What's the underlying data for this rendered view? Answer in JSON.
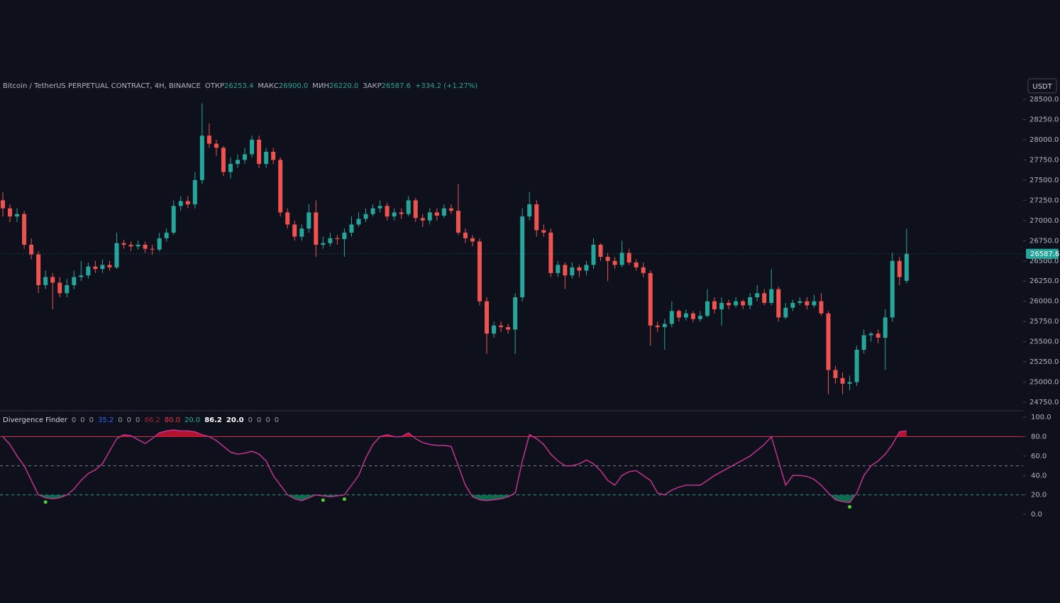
{
  "chart_data": {
    "type": "candlestick",
    "header": {
      "symbol": "Bitcoin / TetherUS PERPETUAL CONTRACT, 4H, BINANCE",
      "fields": [
        {
          "label": "ОТКР",
          "value": "26253.4"
        },
        {
          "label": "МАКС",
          "value": "26900.0"
        },
        {
          "label": "МИН",
          "value": "26220.0"
        },
        {
          "label": "ЗАКР",
          "value": "26587.6"
        }
      ],
      "change": "+334.2 (+1.27%)"
    },
    "currency": "USDT",
    "up_color": "#26a69a",
    "down_color": "#ef5350",
    "ylim": [
      24654,
      28807
    ],
    "yticks": [
      {
        "value": 24750,
        "label": "24750.0"
      },
      {
        "value": 25000,
        "label": "25000.0"
      },
      {
        "value": 25250,
        "label": "25250.0"
      },
      {
        "value": 25500,
        "label": "25500.0"
      },
      {
        "value": 25750,
        "label": "25750.0"
      },
      {
        "value": 26000,
        "label": "26000.0"
      },
      {
        "value": 26250,
        "label": "26250.0"
      },
      {
        "value": 26500,
        "label": "26500.0"
      },
      {
        "value": 26750,
        "label": "26750.0"
      },
      {
        "value": 27000,
        "label": "27000.0"
      },
      {
        "value": 27250,
        "label": "27250.0"
      },
      {
        "value": 27500,
        "label": "27500.0"
      },
      {
        "value": 27750,
        "label": "27750.0"
      },
      {
        "value": 28000,
        "label": "28000.0"
      },
      {
        "value": 28250,
        "label": "28250.0"
      },
      {
        "value": 28500,
        "label": "28500.0"
      }
    ],
    "ohlc": [
      [
        27250,
        27350,
        27050,
        27150
      ],
      [
        27150,
        27200,
        26980,
        27050
      ],
      [
        27050,
        27150,
        26980,
        27080
      ],
      [
        27080,
        27120,
        26650,
        26700
      ],
      [
        26700,
        26780,
        26520,
        26580
      ],
      [
        26580,
        26620,
        26100,
        26200
      ],
      [
        26200,
        26380,
        26150,
        26300
      ],
      [
        26300,
        26350,
        25900,
        26230
      ],
      [
        26230,
        26300,
        26050,
        26100
      ],
      [
        26100,
        26280,
        26050,
        26200
      ],
      [
        26200,
        26380,
        26150,
        26300
      ],
      [
        26300,
        26500,
        26250,
        26320
      ],
      [
        26320,
        26480,
        26280,
        26430
      ],
      [
        26430,
        26500,
        26350,
        26400
      ],
      [
        26400,
        26520,
        26350,
        26450
      ],
      [
        26450,
        26500,
        26380,
        26420
      ],
      [
        26420,
        26850,
        26400,
        26720
      ],
      [
        26720,
        26760,
        26650,
        26700
      ],
      [
        26700,
        26740,
        26620,
        26680
      ],
      [
        26680,
        26750,
        26640,
        26700
      ],
      [
        26700,
        26740,
        26600,
        26650
      ],
      [
        26650,
        26700,
        26580,
        26640
      ],
      [
        26640,
        26850,
        26620,
        26780
      ],
      [
        26780,
        26900,
        26740,
        26850
      ],
      [
        26850,
        27250,
        26820,
        27180
      ],
      [
        27180,
        27300,
        27120,
        27240
      ],
      [
        27240,
        27300,
        27150,
        27200
      ],
      [
        27200,
        27600,
        27150,
        27500
      ],
      [
        27500,
        28450,
        27450,
        28050
      ],
      [
        28050,
        28200,
        27900,
        27950
      ],
      [
        27950,
        28000,
        27800,
        27900
      ],
      [
        27900,
        27920,
        27550,
        27600
      ],
      [
        27600,
        27780,
        27520,
        27700
      ],
      [
        27700,
        27820,
        27650,
        27750
      ],
      [
        27750,
        27900,
        27700,
        27820
      ],
      [
        27820,
        28050,
        27780,
        28000
      ],
      [
        28000,
        28050,
        27650,
        27700
      ],
      [
        27700,
        27900,
        27650,
        27850
      ],
      [
        27850,
        27900,
        27700,
        27750
      ],
      [
        27750,
        27780,
        27050,
        27100
      ],
      [
        27100,
        27150,
        26900,
        26950
      ],
      [
        26950,
        27000,
        26750,
        26800
      ],
      [
        26800,
        26950,
        26750,
        26900
      ],
      [
        26900,
        27200,
        26850,
        27100
      ],
      [
        27100,
        27250,
        26550,
        26700
      ],
      [
        26700,
        26800,
        26650,
        26720
      ],
      [
        26720,
        26850,
        26680,
        26780
      ],
      [
        26780,
        26820,
        26700,
        26770
      ],
      [
        26770,
        26900,
        26550,
        26850
      ],
      [
        26850,
        27050,
        26800,
        26950
      ],
      [
        26950,
        27100,
        26920,
        27020
      ],
      [
        27020,
        27150,
        26980,
        27080
      ],
      [
        27080,
        27200,
        27050,
        27150
      ],
      [
        27150,
        27250,
        27100,
        27180
      ],
      [
        27180,
        27220,
        27000,
        27050
      ],
      [
        27050,
        27150,
        27000,
        27100
      ],
      [
        27100,
        27150,
        27020,
        27080
      ],
      [
        27080,
        27300,
        27050,
        27250
      ],
      [
        27250,
        27280,
        26980,
        27030
      ],
      [
        27030,
        27080,
        26920,
        27000
      ],
      [
        27000,
        27150,
        26950,
        27100
      ],
      [
        27100,
        27150,
        27000,
        27060
      ],
      [
        27060,
        27200,
        27030,
        27150
      ],
      [
        27150,
        27200,
        27080,
        27120
      ],
      [
        27120,
        27450,
        26820,
        26850
      ],
      [
        26850,
        26900,
        26720,
        26780
      ],
      [
        26780,
        26820,
        26680,
        26740
      ],
      [
        26740,
        26780,
        25950,
        26000
      ],
      [
        26000,
        26050,
        25350,
        25600
      ],
      [
        25600,
        25750,
        25550,
        25700
      ],
      [
        25700,
        25750,
        25620,
        25680
      ],
      [
        25680,
        25720,
        25600,
        25650
      ],
      [
        25650,
        26100,
        25350,
        26050
      ],
      [
        26050,
        27150,
        26000,
        27050
      ],
      [
        27050,
        27350,
        27000,
        27200
      ],
      [
        27200,
        27250,
        26800,
        26880
      ],
      [
        26880,
        26950,
        26800,
        26850
      ],
      [
        26850,
        26900,
        26300,
        26350
      ],
      [
        26350,
        26500,
        26300,
        26450
      ],
      [
        26450,
        26480,
        26150,
        26320
      ],
      [
        26320,
        26480,
        26280,
        26420
      ],
      [
        26420,
        26450,
        26300,
        26380
      ],
      [
        26380,
        26500,
        26320,
        26450
      ],
      [
        26450,
        26780,
        26400,
        26700
      ],
      [
        26700,
        26720,
        26500,
        26550
      ],
      [
        26550,
        26600,
        26250,
        26500
      ],
      [
        26500,
        26550,
        26400,
        26450
      ],
      [
        26450,
        26750,
        26420,
        26600
      ],
      [
        26600,
        26650,
        26450,
        26480
      ],
      [
        26480,
        26520,
        26380,
        26420
      ],
      [
        26420,
        26480,
        26300,
        26350
      ],
      [
        26350,
        26380,
        25450,
        25700
      ],
      [
        25700,
        25750,
        25620,
        25680
      ],
      [
        25680,
        25780,
        25400,
        25720
      ],
      [
        25720,
        26000,
        25680,
        25880
      ],
      [
        25880,
        25900,
        25750,
        25800
      ],
      [
        25800,
        25900,
        25760,
        25850
      ],
      [
        25850,
        25880,
        25740,
        25780
      ],
      [
        25780,
        25880,
        25750,
        25820
      ],
      [
        25820,
        26150,
        25800,
        26000
      ],
      [
        26000,
        26050,
        25850,
        25900
      ],
      [
        25900,
        26050,
        25700,
        25980
      ],
      [
        25980,
        26020,
        25900,
        25950
      ],
      [
        25950,
        26050,
        25920,
        26000
      ],
      [
        26000,
        26020,
        25900,
        25950
      ],
      [
        25950,
        26100,
        25900,
        26050
      ],
      [
        26050,
        26200,
        26000,
        26100
      ],
      [
        26100,
        26150,
        25950,
        25980
      ],
      [
        25980,
        26400,
        25950,
        26150
      ],
      [
        26150,
        26180,
        25750,
        25800
      ],
      [
        25800,
        25980,
        25780,
        25920
      ],
      [
        25920,
        26020,
        25880,
        25980
      ],
      [
        25980,
        26050,
        25950,
        26000
      ],
      [
        26000,
        26050,
        25900,
        25950
      ],
      [
        25950,
        26080,
        25920,
        26000
      ],
      [
        26000,
        26100,
        25820,
        25850
      ],
      [
        25850,
        25880,
        24850,
        25150
      ],
      [
        25150,
        25200,
        24980,
        25050
      ],
      [
        25050,
        25120,
        24850,
        24980
      ],
      [
        24980,
        25080,
        24900,
        25000
      ],
      [
        25000,
        25450,
        24950,
        25400
      ],
      [
        25400,
        25650,
        25350,
        25580
      ],
      [
        25580,
        25620,
        25500,
        25600
      ],
      [
        25600,
        25650,
        25480,
        25550
      ],
      [
        25550,
        25900,
        25150,
        25800
      ],
      [
        25800,
        26600,
        25750,
        26500
      ],
      [
        26500,
        26550,
        26200,
        26300
      ],
      [
        26253.4,
        26900,
        26220,
        26587.6
      ]
    ],
    "oscillator": {
      "type": "line",
      "name": "Divergence Finder",
      "legend": [
        {
          "text": "0",
          "color": "#9598a1"
        },
        {
          "text": "0",
          "color": "#9598a1"
        },
        {
          "text": "0",
          "color": "#9598a1"
        },
        {
          "text": "35.2",
          "color": "#2962ff"
        },
        {
          "text": "0",
          "color": "#9598a1"
        },
        {
          "text": "0",
          "color": "#9598a1"
        },
        {
          "text": "0",
          "color": "#9598a1"
        },
        {
          "text": "86.2",
          "color": "#a3223a"
        },
        {
          "text": "80.0",
          "color": "#f23645"
        },
        {
          "text": "20.0",
          "color": "#22ab94"
        },
        {
          "text": "86.2",
          "color": "#ffffff"
        },
        {
          "text": "20.0",
          "color": "#ffffff"
        },
        {
          "text": "0",
          "color": "#9598a1"
        },
        {
          "text": "0",
          "color": "#9598a1"
        },
        {
          "text": "0",
          "color": "#9598a1"
        },
        {
          "text": "0",
          "color": "#9598a1"
        }
      ],
      "color": "#c2338f",
      "overbought_color": "#b2132e",
      "oversold_color": "#0e6b4c",
      "signal_color": "#4cd137",
      "ylim": [
        -11,
        106
      ],
      "yticks": [
        {
          "value": 0,
          "label": "0.0"
        },
        {
          "value": 20,
          "label": "20.0"
        },
        {
          "value": 40,
          "label": "40.0"
        },
        {
          "value": 60,
          "label": "60.0"
        },
        {
          "value": 80,
          "label": "80.0"
        },
        {
          "value": 100,
          "label": "100.0"
        }
      ],
      "levels": [
        80,
        50,
        20
      ],
      "values": [
        80,
        72,
        60,
        50,
        35,
        20,
        17,
        16,
        17,
        20,
        26,
        35,
        42,
        46,
        52,
        65,
        78,
        82,
        81,
        77,
        73,
        78,
        84,
        86,
        87,
        86,
        86,
        85,
        82,
        80,
        76,
        70,
        64,
        62,
        63,
        65,
        62,
        55,
        40,
        30,
        20,
        16,
        14,
        17,
        20,
        19,
        18,
        19,
        20,
        30,
        40,
        58,
        72,
        80,
        82,
        80,
        80,
        84,
        78,
        74,
        72,
        71,
        71,
        70,
        50,
        30,
        18,
        15,
        14,
        15,
        16,
        18,
        22,
        55,
        82,
        78,
        72,
        62,
        55,
        50,
        50,
        52,
        56,
        52,
        45,
        35,
        30,
        40,
        44,
        45,
        40,
        35,
        22,
        20,
        25,
        28,
        30,
        30,
        30,
        35,
        40,
        44,
        48,
        52,
        56,
        60,
        66,
        72,
        80,
        55,
        30,
        40,
        40,
        39,
        36,
        30,
        22,
        15,
        13,
        12,
        22,
        40,
        50,
        55,
        62,
        72,
        85,
        86
      ],
      "bull_signals": [
        6,
        45,
        48,
        119
      ]
    }
  }
}
